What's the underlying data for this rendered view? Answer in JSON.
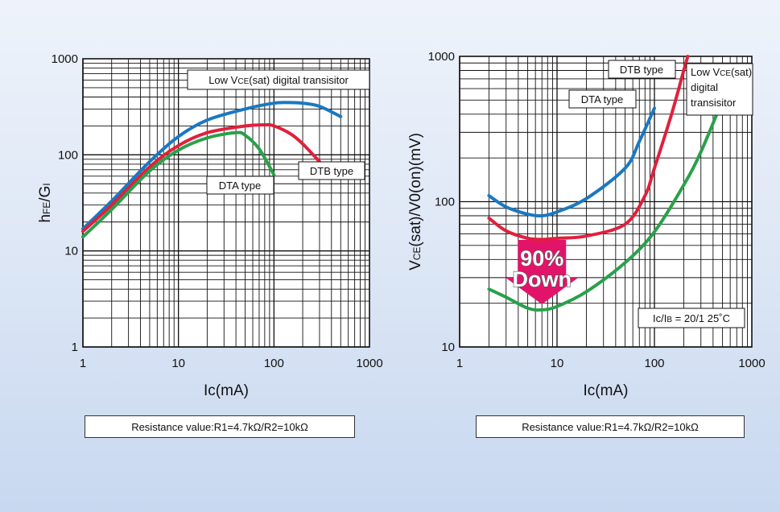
{
  "chart_data": [
    {
      "type": "line",
      "title": "",
      "xlabel": "Ic(mA)",
      "ylabel": "hFE/GI",
      "ylabel_main": "h",
      "ylabel_sub": "FE",
      "ylabel_tail": "/G",
      "ylabel_sub2": "I",
      "xscale": "log",
      "yscale": "log",
      "xlim": [
        1,
        1000
      ],
      "ylim": [
        1,
        1000
      ],
      "xticks": [
        1,
        10,
        100,
        1000
      ],
      "xtick_labels": [
        "1",
        "10",
        "100",
        "1000"
      ],
      "yticks": [
        1,
        10,
        100,
        1000
      ],
      "ytick_labels": [
        "1",
        "10",
        "100",
        "1000"
      ],
      "grid": true,
      "series": [
        {
          "name": "Low VCE(sat) digital transisitor",
          "color": "#1a78c2",
          "x": [
            1,
            2,
            5,
            10,
            20,
            50,
            100,
            150,
            200,
            300,
            500
          ],
          "y": [
            17,
            33,
            85,
            155,
            230,
            300,
            345,
            350,
            345,
            320,
            250
          ]
        },
        {
          "name": "DTB type",
          "color": "#e0203c",
          "x": [
            1,
            2,
            5,
            10,
            20,
            50,
            80,
            100,
            150,
            200,
            300
          ],
          "y": [
            16,
            30,
            75,
            125,
            170,
            200,
            205,
            200,
            165,
            130,
            85
          ]
        },
        {
          "name": "DTA type",
          "color": "#2aa04a",
          "x": [
            1,
            2,
            5,
            10,
            20,
            40,
            50,
            70,
            100
          ],
          "y": [
            14,
            27,
            68,
            112,
            150,
            170,
            160,
            115,
            62
          ]
        }
      ],
      "labels": [
        {
          "text_main": "Low V",
          "text_sub": "CE",
          "text_tail": "(sat) digital transisitor"
        },
        {
          "text": "DTB type"
        },
        {
          "text": "DTA type"
        }
      ],
      "note": "Resistance value:R1=4.7kΩ/R2=10kΩ"
    },
    {
      "type": "line",
      "title": "",
      "xlabel": "Ic(mA)",
      "ylabel": "VCE(sat)/V0(on)(mV)",
      "ylabel_main": "V",
      "ylabel_sub": "CE",
      "ylabel_tail": "(sat)/V0(on)(mV)",
      "xscale": "log",
      "yscale": "log",
      "xlim": [
        1,
        1000
      ],
      "ylim": [
        10,
        1000
      ],
      "xticks": [
        1,
        10,
        100,
        1000
      ],
      "xtick_labels": [
        "1",
        "10",
        "100",
        "1000"
      ],
      "yticks": [
        10,
        100,
        1000
      ],
      "ytick_labels": [
        "10",
        "100",
        "1000"
      ],
      "grid": true,
      "series": [
        {
          "name": "DTA type",
          "color": "#1a78c2",
          "x": [
            2,
            3,
            5,
            7,
            10,
            20,
            50,
            70,
            100
          ],
          "y": [
            110,
            92,
            82,
            80,
            85,
            105,
            170,
            260,
            440
          ]
        },
        {
          "name": "DTB type",
          "color": "#e0203c",
          "x": [
            2,
            3,
            5,
            7,
            10,
            20,
            50,
            80,
            100,
            150,
            200,
            220
          ],
          "y": [
            77,
            63,
            56,
            55,
            56,
            58,
            70,
            110,
            170,
            400,
            800,
            1000
          ]
        },
        {
          "name": "Low VCE(sat) digital transisitor",
          "color": "#2aa04a",
          "x": [
            2,
            3,
            5,
            7,
            10,
            20,
            50,
            100,
            200,
            300,
            500
          ],
          "y": [
            25,
            22,
            18.5,
            18,
            19,
            24,
            38,
            62,
            130,
            220,
            500
          ]
        }
      ],
      "labels": [
        {
          "text": "DTB type"
        },
        {
          "text": "DTA type"
        },
        {
          "text_line1_main": "Low V",
          "text_line1_sub": "CE",
          "text_line1_tail": "(sat)",
          "text_line2": "digital",
          "text_line3": "transisitor"
        },
        {
          "text_main": "Ic/I",
          "text_sub": "B",
          "text_tail": " = 20/1  25˚C"
        }
      ],
      "callout": {
        "line1": "90%",
        "line2": "Down",
        "color": "#e2146a"
      },
      "note": "Resistance value:R1=4.7kΩ/R2=10kΩ"
    }
  ]
}
